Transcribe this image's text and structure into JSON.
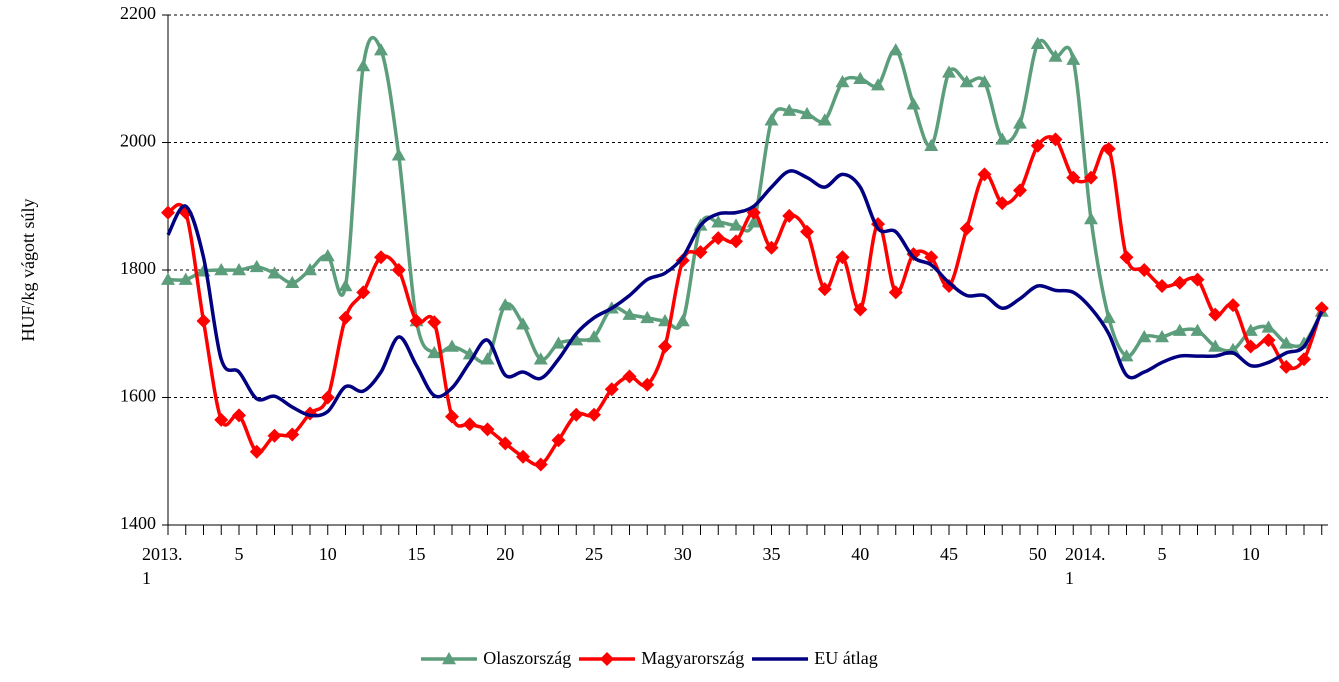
{
  "chart_data": {
    "type": "line",
    "y_label": "HUF/kg vágott súly",
    "categories": [
      "2013.\n1",
      null,
      null,
      null,
      "5",
      null,
      null,
      null,
      null,
      "10",
      null,
      null,
      null,
      null,
      "15",
      null,
      null,
      null,
      null,
      "20",
      null,
      null,
      null,
      null,
      "25",
      null,
      null,
      null,
      null,
      "30",
      null,
      null,
      null,
      null,
      "35",
      null,
      null,
      null,
      null,
      "40",
      null,
      null,
      null,
      null,
      "45",
      null,
      null,
      null,
      null,
      "50",
      null,
      null,
      "2014.\n1",
      null,
      null,
      null,
      "5",
      null,
      null,
      null,
      null,
      "10",
      null,
      null,
      null,
      null
    ],
    "series": [
      {
        "name": "Olaszország",
        "color": "#5c9e7c",
        "marker": "triangle",
        "values": [
          1785,
          1785,
          1798,
          1800,
          1800,
          1805,
          1795,
          1780,
          1800,
          1822,
          1775,
          2120,
          2145,
          1980,
          1720,
          1670,
          1680,
          1668,
          1660,
          1745,
          1715,
          1660,
          1685,
          1690,
          1695,
          1740,
          1730,
          1725,
          1720,
          1720,
          1870,
          1875,
          1870,
          1875,
          2035,
          2050,
          2045,
          2035,
          2095,
          2100,
          2090,
          2145,
          2060,
          1995,
          2110,
          2095,
          2095,
          2005,
          2030,
          2155,
          2135,
          2130,
          1880,
          1725,
          1665,
          1695,
          1695,
          1705,
          1705,
          1680,
          1675,
          1705,
          1710,
          1685,
          1685,
          1735
        ]
      },
      {
        "name": "Magyarország",
        "color": "#ff0000",
        "marker": "diamond",
        "values": [
          1890,
          1890,
          1720,
          1565,
          1572,
          1515,
          1540,
          1542,
          1575,
          1600,
          1725,
          1765,
          1820,
          1800,
          1720,
          1718,
          1570,
          1558,
          1550,
          1528,
          1507,
          1495,
          1533,
          1573,
          1573,
          1613,
          1633,
          1620,
          1680,
          1815,
          1828,
          1850,
          1845,
          1890,
          1835,
          1885,
          1860,
          1770,
          1820,
          1738,
          1872,
          1765,
          1825,
          1820,
          1775,
          1865,
          1950,
          1905,
          1925,
          1995,
          2005,
          1945,
          1945,
          1990,
          1820,
          1800,
          1775,
          1780,
          1785,
          1730,
          1745,
          1680,
          1690,
          1648,
          1660,
          1740
        ]
      },
      {
        "name": "EU átlag",
        "color": "#000080",
        "values": [
          1855,
          1900,
          1820,
          1660,
          1640,
          1598,
          1602,
          1585,
          1572,
          1578,
          1617,
          1610,
          1640,
          1695,
          1650,
          1603,
          1615,
          1655,
          1690,
          1635,
          1640,
          1630,
          1660,
          1700,
          1725,
          1740,
          1760,
          1785,
          1795,
          1820,
          1870,
          1888,
          1890,
          1900,
          1930,
          1955,
          1945,
          1930,
          1950,
          1930,
          1865,
          1860,
          1820,
          1808,
          1780,
          1760,
          1760,
          1740,
          1755,
          1775,
          1768,
          1765,
          1740,
          1700,
          1635,
          1640,
          1655,
          1665,
          1665,
          1665,
          1670,
          1650,
          1655,
          1670,
          1680,
          1735
        ]
      }
    ],
    "ylim": [
      1400,
      2200
    ],
    "yticks": [
      1400,
      1600,
      1800,
      2000,
      2200
    ],
    "grid": true,
    "legend": "bottom"
  }
}
